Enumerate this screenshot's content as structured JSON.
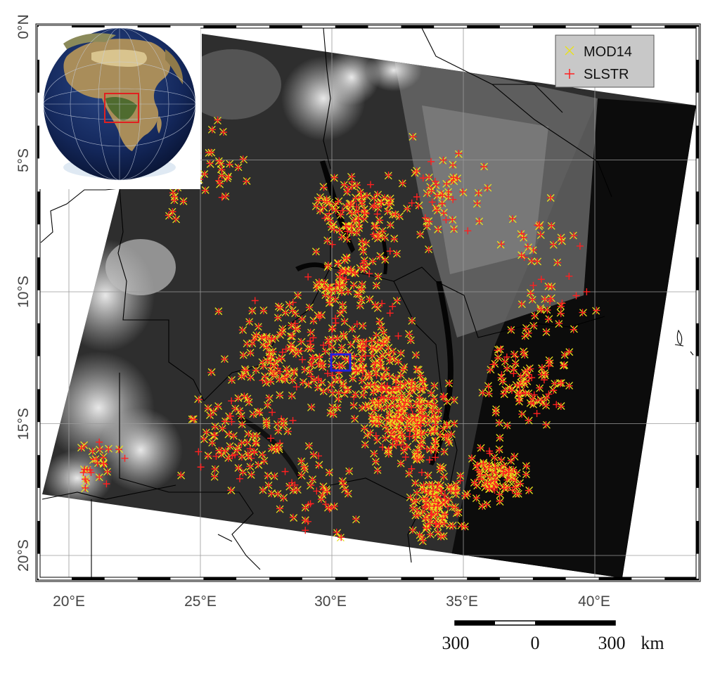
{
  "map": {
    "lat_labels": [
      "0°N",
      "5°S",
      "10°S",
      "15°S",
      "20°S"
    ],
    "lon_labels": [
      "20°E",
      "25°E",
      "30°E",
      "35°E",
      "40°E"
    ],
    "legend": [
      {
        "name": "MOD14",
        "marker": "x",
        "color": "#e8e020"
      },
      {
        "name": "SLSTR",
        "marker": "+",
        "color": "#ff2020"
      }
    ],
    "scale_bar": {
      "left": "300",
      "center": "0",
      "right": "300",
      "unit": "km"
    },
    "inset": {
      "name": "globe-inset",
      "highlight_color": "#e02020"
    },
    "highlight_box_color": "#2020e0",
    "lat_range": [
      0,
      -21
    ],
    "lon_range": [
      19,
      44
    ]
  },
  "chart_data": {
    "type": "scatter",
    "title": "",
    "xlabel": "",
    "ylabel": "",
    "xlim": [
      19,
      44
    ],
    "ylim": [
      -21,
      0
    ],
    "series": [
      {
        "name": "MOD14",
        "color": "#e8e020",
        "marker": "x"
      },
      {
        "name": "SLSTR",
        "color": "#ff2020",
        "marker": "+"
      }
    ],
    "hotspot_clusters": [
      {
        "lon": 33.0,
        "lat": -15.0,
        "spread": 1.3,
        "count": 220
      },
      {
        "lon": 34.0,
        "lat": -18.2,
        "spread": 0.9,
        "count": 120
      },
      {
        "lon": 36.3,
        "lat": -17.0,
        "spread": 0.8,
        "count": 90
      },
      {
        "lon": 31.5,
        "lat": -13.0,
        "spread": 1.6,
        "count": 170
      },
      {
        "lon": 28.5,
        "lat": -12.5,
        "spread": 1.8,
        "count": 150
      },
      {
        "lon": 31.0,
        "lat": -7.0,
        "spread": 1.2,
        "count": 110
      },
      {
        "lon": 26.5,
        "lat": -15.5,
        "spread": 1.5,
        "count": 90
      },
      {
        "lon": 37.5,
        "lat": -13.5,
        "spread": 1.4,
        "count": 90
      },
      {
        "lon": 30.5,
        "lat": -9.5,
        "spread": 1.2,
        "count": 80
      },
      {
        "lon": 34.0,
        "lat": -6.5,
        "spread": 1.5,
        "count": 55
      },
      {
        "lon": 21.0,
        "lat": -16.5,
        "spread": 0.7,
        "count": 25
      },
      {
        "lon": 25.0,
        "lat": -5.5,
        "spread": 1.5,
        "count": 40
      },
      {
        "lon": 38.5,
        "lat": -10.5,
        "spread": 1.0,
        "count": 30
      },
      {
        "lon": 29.5,
        "lat": -17.5,
        "spread": 1.4,
        "count": 50
      },
      {
        "lon": 38.0,
        "lat": -8.0,
        "spread": 1.3,
        "count": 20
      }
    ]
  }
}
